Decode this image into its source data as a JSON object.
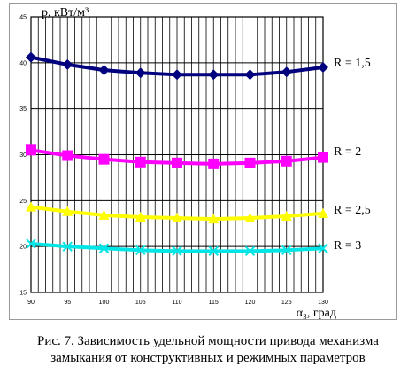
{
  "chart_data": {
    "type": "line",
    "ylabel": "p, кВт/м³",
    "xlabel": "α₃, град",
    "x": [
      90,
      95,
      100,
      105,
      110,
      115,
      120,
      125,
      130
    ],
    "xlim": [
      90,
      130
    ],
    "ylim": [
      15,
      45
    ],
    "xticks": [
      "90",
      "95",
      "100",
      "105",
      "110",
      "115",
      "120",
      "125",
      "130"
    ],
    "yticks": [
      "15",
      "20",
      "25",
      "30",
      "35",
      "40",
      "45"
    ],
    "grid": {
      "vertical_step": 1,
      "horizontal_step": 5
    },
    "series": [
      {
        "name": "R = 1,5",
        "marker": "diamond",
        "color": "#00007f",
        "values": [
          40.6,
          39.8,
          39.2,
          38.9,
          38.7,
          38.7,
          38.7,
          39.0,
          39.5
        ]
      },
      {
        "name": "R = 2",
        "marker": "square",
        "color": "#ff00ff",
        "values": [
          30.5,
          29.9,
          29.5,
          29.2,
          29.1,
          29.0,
          29.1,
          29.3,
          29.7
        ]
      },
      {
        "name": "R = 2,5",
        "marker": "triangle",
        "color": "#ffff00",
        "values": [
          24.3,
          23.8,
          23.4,
          23.2,
          23.1,
          23.0,
          23.1,
          23.3,
          23.6
        ]
      },
      {
        "name": "R = 3",
        "marker": "x",
        "color": "#00e5e5",
        "values": [
          20.3,
          20.0,
          19.8,
          19.6,
          19.5,
          19.5,
          19.5,
          19.6,
          19.8
        ]
      }
    ]
  },
  "caption": {
    "line1": "Рис. 7. Зависимость удельной мощности привода механизма",
    "line2": "замыкания от конструктивных и режимных параметров"
  }
}
